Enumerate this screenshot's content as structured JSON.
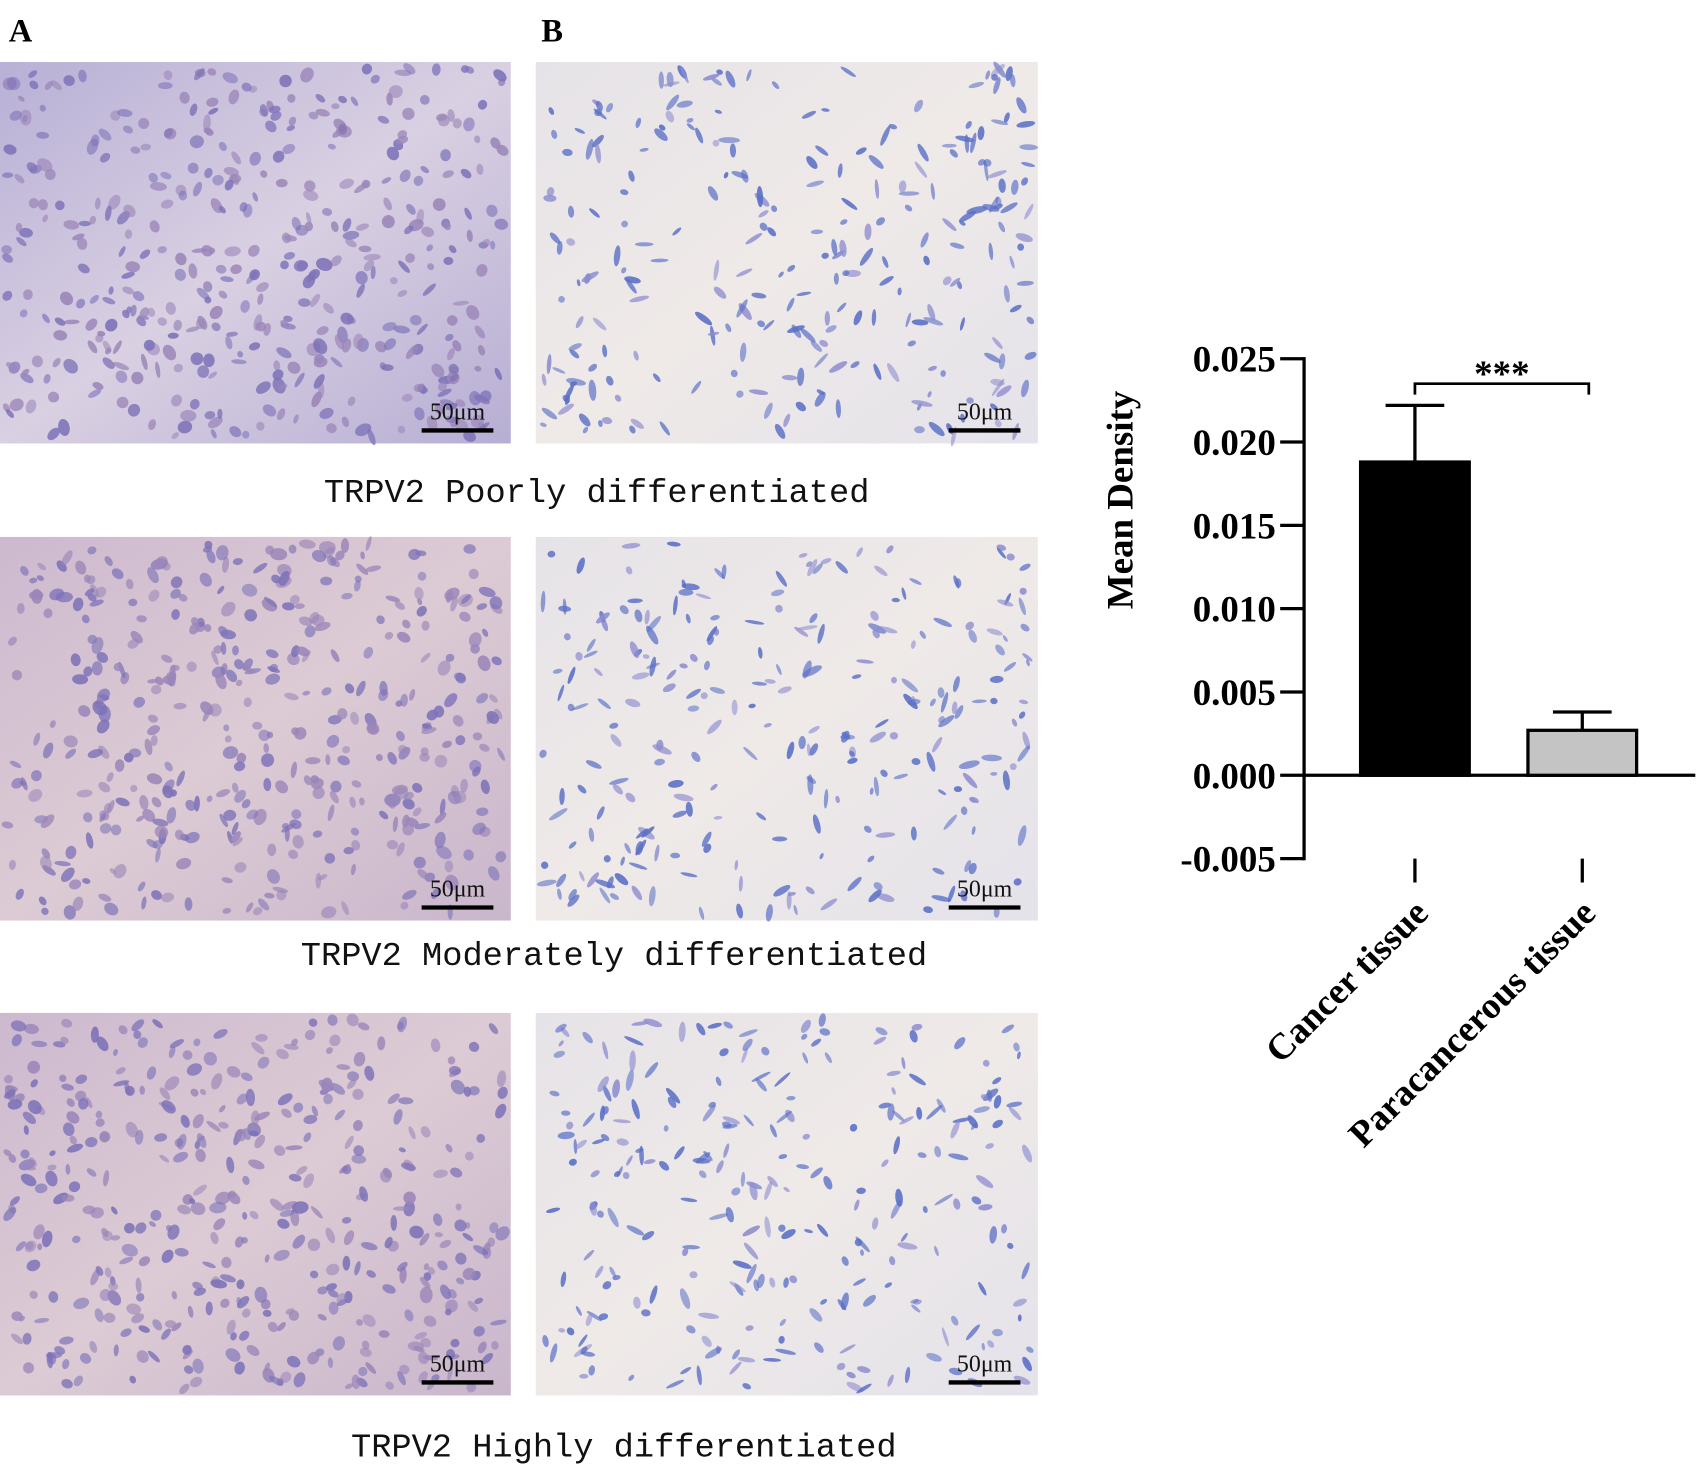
{
  "panels": [
    "A",
    "B"
  ],
  "scale_bars": [
    "50μm",
    "50μm",
    "50μm",
    "50μm",
    "50μm",
    "50μm"
  ],
  "captions": [
    "TRPV2 Poorly differentiated",
    "TRPV2 Moderately differentiated",
    "TRPV2 Highly differentiated"
  ],
  "chart_data": {
    "type": "bar",
    "y_label": "Mean Density",
    "annotation": "***",
    "categories": [
      "Cancer tissue",
      "Paracancerous tissue"
    ],
    "values": [
      0.0188,
      0.0027
    ],
    "errors": [
      0.0034,
      0.0011
    ],
    "colors": [
      "#000000",
      "#c4c4c4"
    ],
    "ylim": [
      -0.005,
      0.025
    ],
    "yticks": [
      -0.005,
      {
        "value": 0,
        "label": "0.000"
      },
      0.005,
      {
        "value": 0.01,
        "label": "0.010"
      },
      0.015,
      {
        "value": 0.02,
        "label": "0.020"
      },
      0.025
    ]
  }
}
